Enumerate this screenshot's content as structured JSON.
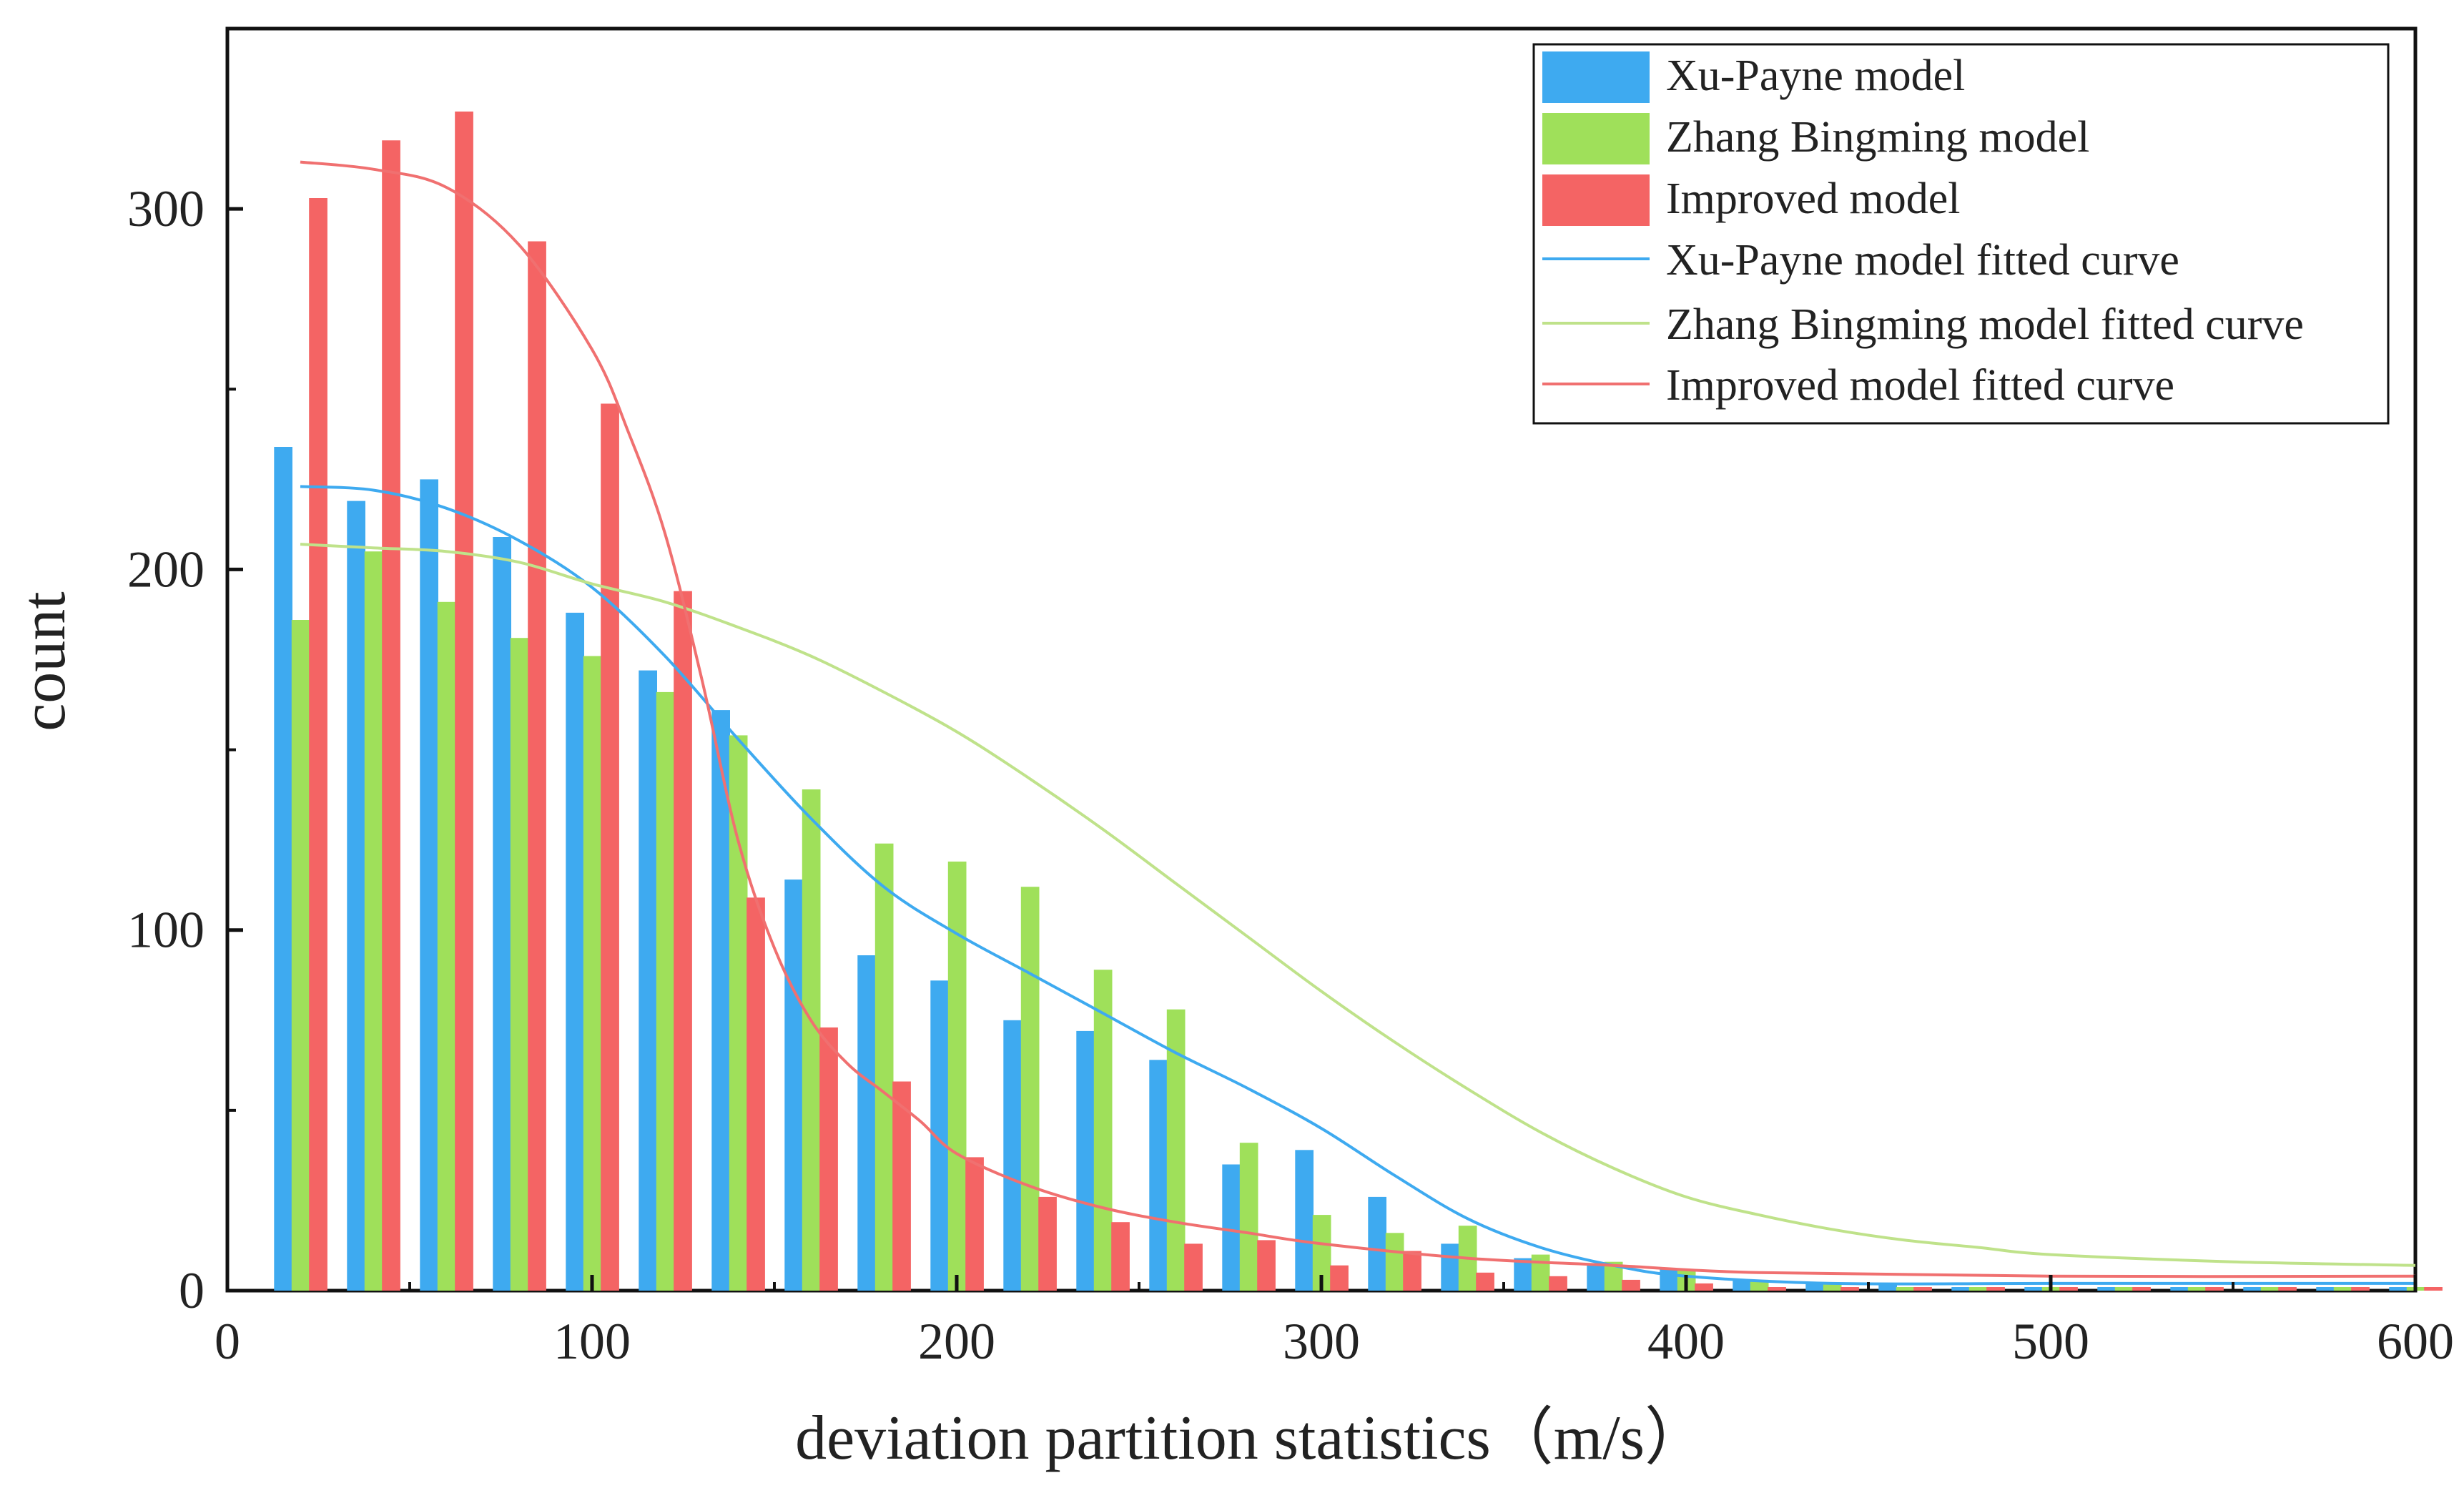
{
  "chart_data": {
    "type": "bar",
    "title": "",
    "xlabel": "deviation partition statistics（m/s）",
    "ylabel": "count",
    "xlim": [
      0,
      600
    ],
    "ylim": [
      0,
      350
    ],
    "x_ticks": [
      "0",
      "100",
      "200",
      "300",
      "400",
      "500",
      "600"
    ],
    "y_ticks": [
      "0",
      "100",
      "200",
      "300"
    ],
    "bin_width": 20,
    "bin_centers": [
      20,
      40,
      60,
      80,
      100,
      120,
      140,
      160,
      180,
      200,
      220,
      240,
      260,
      280,
      300,
      320,
      340,
      360,
      380,
      400,
      420,
      440,
      460,
      480,
      500,
      520,
      540,
      560,
      580,
      600
    ],
    "series": [
      {
        "name": "Xu-Payne model",
        "color": "#3eaaf0",
        "values": [
          234,
          219,
          225,
          209,
          188,
          172,
          161,
          114,
          93,
          86,
          75,
          72,
          64,
          35,
          39,
          26,
          13,
          9,
          7,
          6,
          3,
          2,
          2,
          1,
          1,
          1,
          1,
          1,
          1,
          1
        ]
      },
      {
        "name": "Zhang Bingming model",
        "color": "#9fe05a",
        "values": [
          186,
          205,
          191,
          181,
          176,
          166,
          154,
          139,
          124,
          119,
          112,
          89,
          78,
          41,
          21,
          16,
          18,
          10,
          8,
          6,
          3,
          2,
          1,
          1,
          1,
          1,
          1,
          1,
          1,
          1
        ]
      },
      {
        "name": "Improved model",
        "color": "#f46464",
        "values": [
          303,
          319,
          327,
          291,
          246,
          194,
          109,
          73,
          58,
          37,
          26,
          19,
          13,
          14,
          7,
          11,
          5,
          4,
          3,
          2,
          1,
          1,
          1,
          1,
          1,
          1,
          1,
          1,
          1,
          1
        ]
      }
    ],
    "fitted_curves": [
      {
        "name": "Xu-Payne model fitted curve",
        "color": "#3eaaf0",
        "points": [
          [
            20,
            223
          ],
          [
            40,
            222
          ],
          [
            60,
            217
          ],
          [
            80,
            208
          ],
          [
            100,
            195
          ],
          [
            120,
            176
          ],
          [
            140,
            153
          ],
          [
            160,
            131
          ],
          [
            180,
            112
          ],
          [
            200,
            99
          ],
          [
            220,
            88
          ],
          [
            240,
            77
          ],
          [
            260,
            66
          ],
          [
            280,
            56
          ],
          [
            300,
            45
          ],
          [
            320,
            32
          ],
          [
            340,
            20
          ],
          [
            360,
            12
          ],
          [
            380,
            7
          ],
          [
            400,
            4
          ],
          [
            440,
            2
          ],
          [
            500,
            2
          ],
          [
            600,
            2
          ]
        ]
      },
      {
        "name": "Zhang Bingming model fitted curve",
        "color": "#bfe28a",
        "points": [
          [
            20,
            207
          ],
          [
            40,
            206
          ],
          [
            60,
            205
          ],
          [
            80,
            202
          ],
          [
            100,
            196
          ],
          [
            120,
            191
          ],
          [
            140,
            184
          ],
          [
            160,
            176
          ],
          [
            180,
            166
          ],
          [
            200,
            155
          ],
          [
            220,
            142
          ],
          [
            240,
            128
          ],
          [
            260,
            113
          ],
          [
            280,
            98
          ],
          [
            300,
            83
          ],
          [
            320,
            69
          ],
          [
            340,
            56
          ],
          [
            360,
            44
          ],
          [
            380,
            34
          ],
          [
            400,
            26
          ],
          [
            420,
            21
          ],
          [
            440,
            17
          ],
          [
            460,
            14
          ],
          [
            480,
            12
          ],
          [
            500,
            10
          ],
          [
            550,
            8
          ],
          [
            600,
            7
          ]
        ]
      },
      {
        "name": "Improved model fitted curve",
        "color": "#f07070",
        "points": [
          [
            20,
            313
          ],
          [
            40,
            311
          ],
          [
            60,
            306
          ],
          [
            80,
            290
          ],
          [
            100,
            261
          ],
          [
            110,
            238
          ],
          [
            120,
            210
          ],
          [
            130,
            170
          ],
          [
            140,
            125
          ],
          [
            150,
            95
          ],
          [
            160,
            75
          ],
          [
            170,
            63
          ],
          [
            180,
            55
          ],
          [
            190,
            47
          ],
          [
            200,
            38
          ],
          [
            220,
            29
          ],
          [
            240,
            23
          ],
          [
            260,
            19
          ],
          [
            280,
            16
          ],
          [
            300,
            13
          ],
          [
            340,
            9
          ],
          [
            380,
            7
          ],
          [
            420,
            5
          ],
          [
            500,
            4
          ],
          [
            600,
            4
          ]
        ]
      }
    ],
    "legend_position": "top-right",
    "grid": false
  }
}
